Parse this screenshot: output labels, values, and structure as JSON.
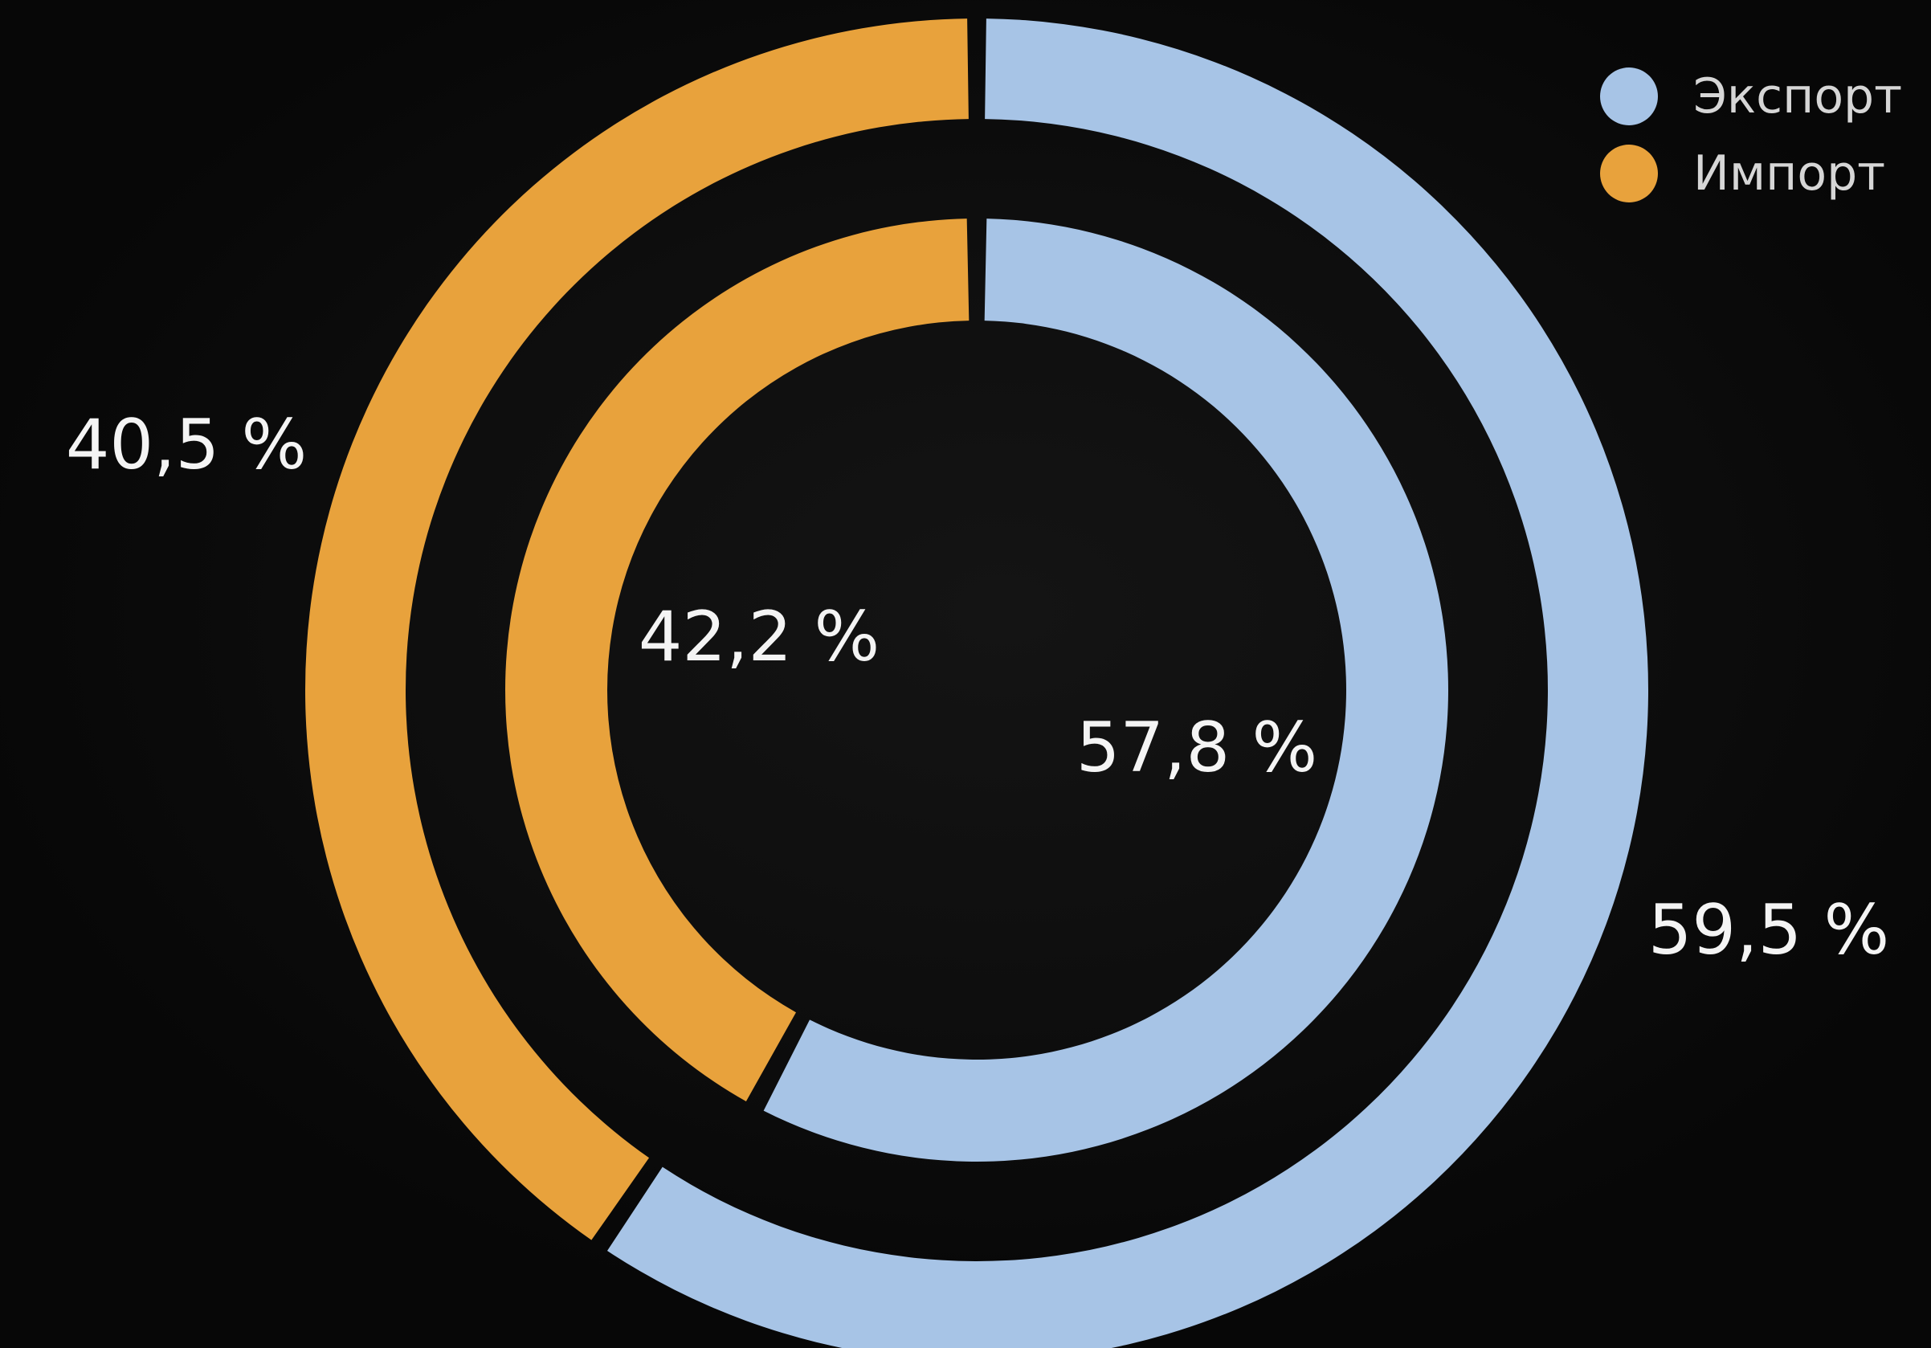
{
  "chart_data": {
    "type": "pie",
    "variant": "double-donut",
    "series": [
      {
        "ring": "outer",
        "slices": [
          {
            "name": "Экспорт",
            "value": 59.5,
            "label": "59,5 %"
          },
          {
            "name": "Импорт",
            "value": 40.5,
            "label": "40,5 %"
          }
        ]
      },
      {
        "ring": "inner",
        "slices": [
          {
            "name": "Экспорт",
            "value": 57.8,
            "label": "57,8 %"
          },
          {
            "name": "Импорт",
            "value": 42.2,
            "label": "42,2 %"
          }
        ]
      }
    ],
    "legend": {
      "position": "top-right",
      "items": [
        {
          "name": "Экспорт",
          "color": "#a7c4e6"
        },
        {
          "name": "Импорт",
          "color": "#e8a23c"
        }
      ]
    }
  }
}
